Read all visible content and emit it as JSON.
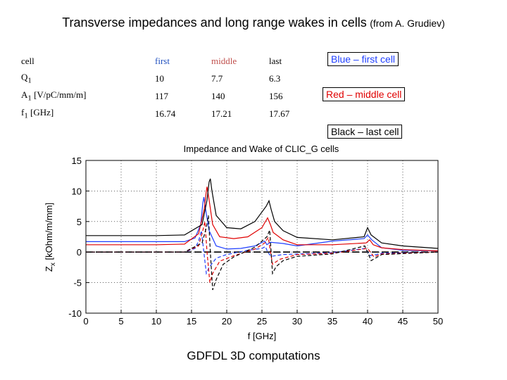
{
  "slide": {
    "title": "Transverse impedances and long range wakes in cells",
    "title_source": "(from A. Grudiev)",
    "caption": "GDFDL 3D computations"
  },
  "params_table": {
    "header": [
      "cell",
      "first",
      "middle",
      "last"
    ],
    "rows": [
      {
        "label": "Q",
        "sub": "1",
        "unit": "",
        "values": [
          "10",
          "7.7",
          "6.3"
        ]
      },
      {
        "label": "A",
        "sub": "1",
        "unit": " [V/pC/mm/m]",
        "values": [
          "117",
          "140",
          "156"
        ]
      },
      {
        "label": "f",
        "sub": "1",
        "unit": " [GHz]",
        "values": [
          "16.74",
          "17.21",
          "17.67"
        ]
      }
    ]
  },
  "legend": [
    {
      "text": "Blue – first cell",
      "color": "#1f3fff"
    },
    {
      "text": "Red – middle cell",
      "color": "#e00000"
    },
    {
      "text": "Black – last cell",
      "color": "#000000"
    }
  ],
  "chart_data": {
    "type": "line",
    "title": "Impedance and Wake of CLIC_G cells",
    "xlabel": "f [GHz]",
    "ylabel": "Z",
    "ylabel_sub": "x",
    "ylabel_unit": " [kOhm/m/mm]",
    "xlim": [
      0,
      50
    ],
    "ylim": [
      -10,
      15
    ],
    "xticks": [
      0,
      5,
      10,
      15,
      20,
      25,
      30,
      35,
      40,
      45,
      50
    ],
    "yticks": [
      -10,
      -5,
      0,
      5,
      10,
      15
    ],
    "grid": true,
    "series": [
      {
        "name": "first cell Re(Z)",
        "color": "#1f3fff",
        "dash": "",
        "x": [
          0,
          10,
          14,
          15.5,
          16.3,
          16.6,
          16.75,
          17.0,
          17.5,
          18.5,
          20,
          22,
          24,
          25.4,
          25.7,
          26.2,
          28,
          30,
          35,
          39.5,
          40,
          40.6,
          42,
          45,
          50
        ],
        "y": [
          1.7,
          1.7,
          1.7,
          2.3,
          4.5,
          8.0,
          9.0,
          7.0,
          3.5,
          1.0,
          0.5,
          0.6,
          1.0,
          1.8,
          1.2,
          1.6,
          1.4,
          1.0,
          1.8,
          2.2,
          2.8,
          2.0,
          0.7,
          0.3,
          0.2
        ]
      },
      {
        "name": "middle cell Re(Z)",
        "color": "#e00000",
        "dash": "",
        "x": [
          0,
          10,
          14,
          16,
          16.8,
          17.1,
          17.2,
          17.5,
          18.0,
          19,
          21,
          23,
          25,
          25.8,
          26.2,
          26.6,
          28,
          30,
          35,
          39.8,
          40.3,
          40.8,
          42,
          45,
          50
        ],
        "y": [
          1.2,
          1.2,
          1.3,
          3.0,
          7.0,
          10.0,
          10.7,
          8.5,
          4.5,
          2.5,
          2.2,
          2.5,
          4.0,
          5.6,
          4.5,
          3.2,
          2.0,
          1.2,
          1.2,
          1.5,
          2.0,
          1.2,
          0.7,
          0.4,
          0.2
        ]
      },
      {
        "name": "last cell Re(Z)",
        "color": "#000000",
        "dash": "",
        "x": [
          0,
          10,
          14,
          16.5,
          17.2,
          17.5,
          17.67,
          17.9,
          18.5,
          20,
          22,
          24,
          25.6,
          26.0,
          26.3,
          26.8,
          28,
          30,
          35,
          39.5,
          40.0,
          40.5,
          42,
          45,
          50
        ],
        "y": [
          2.7,
          2.7,
          2.8,
          4.5,
          8.5,
          11.5,
          12.0,
          10.0,
          6.0,
          4.0,
          3.8,
          5.0,
          7.5,
          8.4,
          7.0,
          5.0,
          3.5,
          2.4,
          2.0,
          2.5,
          4.0,
          2.8,
          1.5,
          1.0,
          0.6
        ]
      },
      {
        "name": "first cell Im(Z)",
        "color": "#1f3fff",
        "dash": "5,3",
        "x": [
          0,
          14,
          15.5,
          16.0,
          16.4,
          16.75,
          17.1,
          17.5,
          18.5,
          20,
          23,
          25,
          25.5,
          25.8,
          26.3,
          28,
          35,
          39.7,
          40.0,
          40.4,
          42,
          50
        ],
        "y": [
          0,
          0,
          0.6,
          1.8,
          3.5,
          0,
          -3.5,
          -2.5,
          -1.0,
          -0.4,
          0.3,
          0.6,
          0.9,
          0,
          -0.7,
          -0.4,
          -0.1,
          0.6,
          0,
          -0.6,
          -0.2,
          0
        ]
      },
      {
        "name": "middle cell Im(Z)",
        "color": "#e00000",
        "dash": "5,3",
        "x": [
          0,
          14,
          16,
          16.6,
          16.9,
          17.2,
          17.6,
          18.0,
          19,
          21,
          24,
          25.4,
          25.9,
          26.5,
          27.5,
          30,
          35,
          40.0,
          40.4,
          40.9,
          42,
          50
        ],
        "y": [
          0,
          0,
          1.0,
          3.5,
          5.0,
          0,
          -5.0,
          -3.5,
          -1.5,
          -0.6,
          0.5,
          1.5,
          2.4,
          -2.0,
          -1.2,
          -0.4,
          -0.2,
          0.6,
          0,
          -0.8,
          -0.3,
          0
        ]
      },
      {
        "name": "last cell Im(Z)",
        "color": "#000000",
        "dash": "5,3",
        "x": [
          0,
          14,
          16.5,
          17.1,
          17.4,
          17.67,
          18.0,
          18.5,
          19.5,
          21,
          24,
          25.7,
          26.1,
          26.5,
          27.0,
          28,
          30,
          35,
          39.6,
          40.0,
          40.5,
          42,
          50
        ],
        "y": [
          0,
          0,
          1.5,
          4.0,
          6.0,
          0,
          -6.2,
          -4.5,
          -2.0,
          -0.8,
          0.8,
          2.5,
          3.6,
          -3.5,
          -2.4,
          -1.4,
          -0.7,
          -0.3,
          1.0,
          0,
          -1.4,
          -0.4,
          0
        ]
      }
    ]
  }
}
